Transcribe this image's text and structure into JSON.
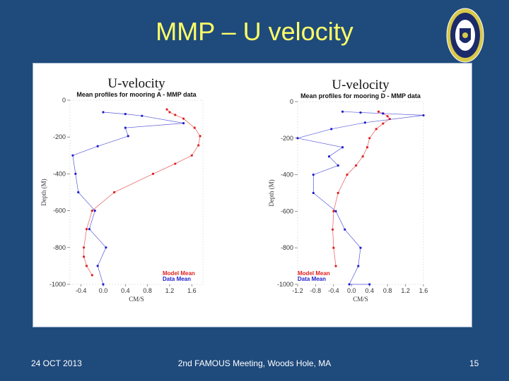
{
  "slide": {
    "title": "MMP – U velocity",
    "footer_date": "24 OCT 2013",
    "footer_meeting": "2nd FAMOUS Meeting, Woods Hole, MA",
    "page_number": "15",
    "colors": {
      "background": "#1f4a7c",
      "title": "#ffff66",
      "panel": "#ffffff"
    },
    "logo_icon": "institution-seal-icon"
  },
  "chart_data": [
    {
      "type": "line",
      "title": "U-velocity",
      "subtitle": "Mean profiles for mooring A - MMP data",
      "xlabel": "CM/S",
      "ylabel": "Depth (M)",
      "xlim": [
        -0.6,
        1.8
      ],
      "ylim": [
        -1000,
        0
      ],
      "xticks": [
        -0.4,
        0.0,
        0.4,
        0.8,
        1.2,
        1.6
      ],
      "xtick_labels": [
        "-0.4",
        "0.0",
        "0.4",
        "0.8",
        "1.2",
        "1.6"
      ],
      "yticks": [
        0,
        -200,
        -400,
        -600,
        -800,
        -1000
      ],
      "ytick_labels": [
        "0",
        "-200",
        "-400",
        "-600",
        "-800",
        "-1000"
      ],
      "legend_position": "bottom-right",
      "series": [
        {
          "name": "Model Mean",
          "color": "#e02020",
          "x": [
            1.15,
            1.2,
            1.3,
            1.45,
            1.65,
            1.75,
            1.72,
            1.6,
            1.3,
            0.9,
            0.2,
            -0.2,
            -0.3,
            -0.35,
            -0.35,
            -0.3,
            -0.2
          ],
          "y": [
            -50,
            -65,
            -80,
            -100,
            -150,
            -195,
            -245,
            -300,
            -345,
            -400,
            -500,
            -600,
            -700,
            -800,
            -850,
            -900,
            -950
          ]
        },
        {
          "name": "Data Mean",
          "color": "#2020cc",
          "x": [
            0.0,
            0.4,
            0.7,
            1.45,
            0.4,
            0.45,
            -0.1,
            -0.55,
            -0.5,
            -0.45,
            -0.15,
            -0.25,
            0.05,
            -0.1,
            0.0
          ],
          "y": [
            -65,
            -75,
            -85,
            -125,
            -150,
            -195,
            -250,
            -300,
            -400,
            -500,
            -600,
            -700,
            -800,
            -900,
            -1000
          ]
        }
      ]
    },
    {
      "type": "line",
      "title": "U-velocity",
      "subtitle": "Mean profiles for mooring D - MMP data",
      "xlabel": "CM/S",
      "ylabel": "Depth (M)",
      "xlim": [
        -1.2,
        1.6
      ],
      "ylim": [
        -1000,
        0
      ],
      "xticks": [
        -1.2,
        -0.8,
        -0.4,
        0.0,
        0.4,
        0.8,
        1.2,
        1.6
      ],
      "xtick_labels": [
        "-1.2",
        "-0.8",
        "-0.4",
        "0.0",
        "0.4",
        "0.8",
        "1.2",
        "1.6"
      ],
      "yticks": [
        0,
        -200,
        -400,
        -600,
        -800,
        -1000
      ],
      "ytick_labels": [
        "0",
        "-200",
        "-400",
        "-600",
        "-800",
        "-1000"
      ],
      "legend_position": "bottom-left",
      "series": [
        {
          "name": "Model Mean",
          "color": "#e02020",
          "x": [
            0.6,
            0.7,
            0.8,
            0.85,
            0.7,
            0.55,
            0.4,
            0.35,
            0.25,
            0.1,
            -0.1,
            -0.3,
            -0.4,
            -0.42,
            -0.4,
            -0.35
          ],
          "y": [
            -55,
            -65,
            -80,
            -95,
            -120,
            -150,
            -200,
            -250,
            -300,
            -350,
            -400,
            -500,
            -600,
            -700,
            -800,
            -900
          ]
        },
        {
          "name": "Data Mean",
          "color": "#2020cc",
          "x": [
            -0.2,
            0.2,
            0.7,
            1.6,
            0.3,
            -0.45,
            -1.2,
            -0.2,
            -0.5,
            -0.3,
            -0.85,
            -0.85,
            -0.35,
            -0.15,
            0.2,
            0.15,
            -0.05,
            0.4
          ],
          "y": [
            -55,
            -60,
            -65,
            -75,
            -115,
            -150,
            -200,
            -250,
            -300,
            -350,
            -400,
            -500,
            -600,
            -700,
            -800,
            -900,
            -1000,
            -1000
          ]
        }
      ]
    }
  ]
}
